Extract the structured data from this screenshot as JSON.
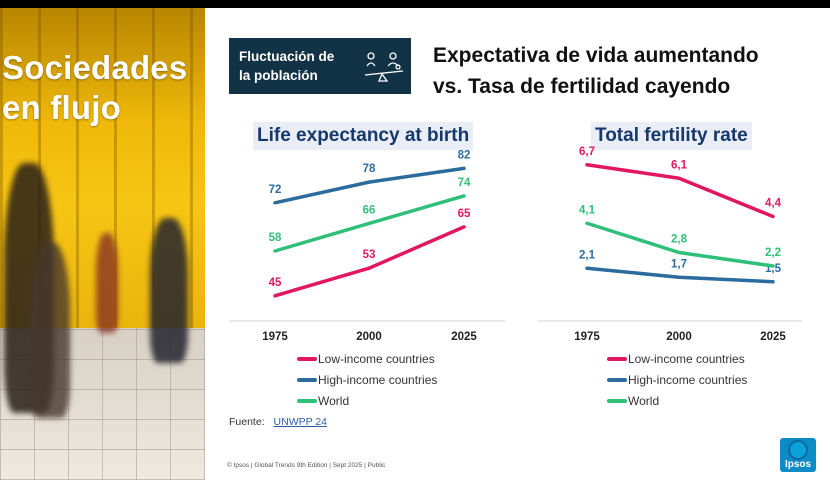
{
  "photo_title_line1": "Sociedades",
  "photo_title_line2": "en flujo",
  "badge": {
    "line1": "Fluctuación de",
    "line2": "la población"
  },
  "headline": {
    "line1": "Expectativa de vida aumentando",
    "line2": "vs. Tasa de fertilidad cayendo"
  },
  "colors": {
    "low": "#e3175f",
    "high": "#2c6b9e",
    "world": "#2fbf78",
    "accent": "#123246"
  },
  "legend": {
    "low": "Low-income countries",
    "high": "High-income countries",
    "world": "World"
  },
  "chart_data": [
    {
      "type": "line",
      "title": "Life expectancy at birth",
      "x": [
        "1975",
        "2000",
        "2025"
      ],
      "series": [
        {
          "name": "Low-income countries",
          "key": "low",
          "values": [
            45,
            53,
            65
          ],
          "labels": [
            "45",
            "53",
            "65"
          ]
        },
        {
          "name": "High-income countries",
          "key": "high",
          "values": [
            72,
            78,
            82
          ],
          "labels": [
            "72",
            "78",
            "82"
          ]
        },
        {
          "name": "World",
          "key": "world",
          "values": [
            58,
            66,
            74
          ],
          "labels": [
            "58",
            "66",
            "74"
          ]
        }
      ],
      "ylim": [
        40,
        85
      ],
      "grid": false,
      "legend_position": "bottom"
    },
    {
      "type": "line",
      "title": "Total fertility rate",
      "x": [
        "1975",
        "2000",
        "2025"
      ],
      "series": [
        {
          "name": "Low-income countries",
          "key": "low",
          "values": [
            6.7,
            6.1,
            4.4
          ],
          "labels": [
            "6,7",
            "6,1",
            "4,4"
          ]
        },
        {
          "name": "High-income countries",
          "key": "high",
          "values": [
            2.1,
            1.7,
            1.5
          ],
          "labels": [
            "2,1",
            "1,7",
            "1,5"
          ]
        },
        {
          "name": "World",
          "key": "world",
          "values": [
            4.1,
            2.8,
            2.2
          ],
          "labels": [
            "4,1",
            "2,8",
            "2,2"
          ]
        }
      ],
      "ylim": [
        1,
        7
      ],
      "grid": false,
      "legend_position": "bottom"
    }
  ],
  "source": {
    "label": "Fuente:",
    "link": "UNWPP 24"
  },
  "footer": "© Ipsos | Global Trends 9th Edition | Sept 2025 | Public",
  "logo_text": "Ipsos"
}
